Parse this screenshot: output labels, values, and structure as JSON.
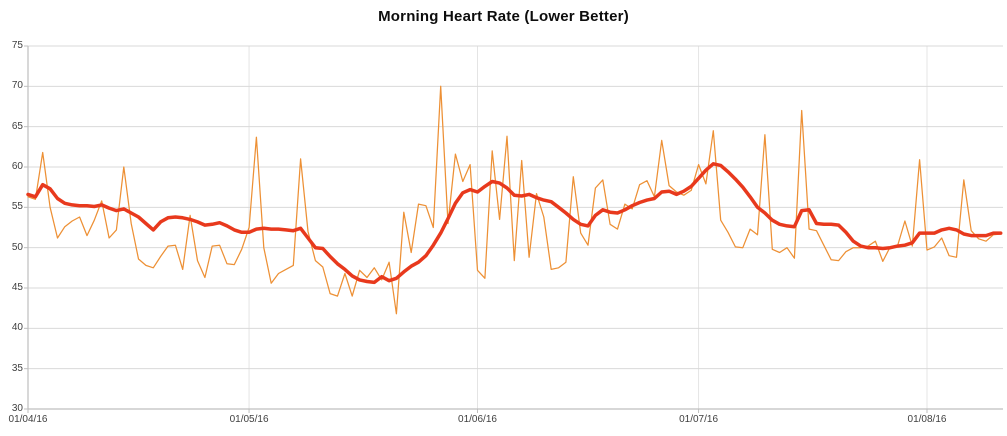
{
  "chart_data": {
    "type": "line",
    "title": "Morning Heart Rate (Lower Better)",
    "x_axis": {
      "tick_labels": [
        "01/04/16",
        "01/05/16",
        "01/06/16",
        "01/07/16",
        "01/08/16"
      ],
      "tick_day_offsets": [
        0,
        30,
        61,
        91,
        122
      ],
      "frequency": "daily",
      "total_days": 133
    },
    "y_axis": {
      "min": 30,
      "max": 75,
      "tick_step": 5,
      "tick_labels": [
        "75",
        "70",
        "65",
        "60",
        "55",
        "50",
        "45",
        "40",
        "35",
        "30"
      ]
    },
    "grid": {
      "horizontal": true,
      "vertical_month_lines": true
    },
    "colors": {
      "raw_line": "#ED9035",
      "average_line": "#E8391D",
      "gridline": "#D9D9D9",
      "vertical_gridline": "#E4E4E4",
      "axis_line": "#BFBFBF",
      "axis_text": "#3F3F3F",
      "title_text": "#0D0D0D"
    },
    "series": [
      {
        "name": "daily-values",
        "role": "raw thin orange line",
        "values": [
          56.3,
          56.0,
          61.8,
          55.0,
          51.2,
          52.6,
          53.3,
          53.8,
          51.5,
          53.4,
          55.8,
          51.2,
          52.2,
          60.0,
          53.0,
          48.6,
          47.8,
          47.5,
          48.9,
          50.2,
          50.3,
          47.3,
          54.0,
          48.4,
          46.3,
          50.2,
          50.3,
          48.0,
          47.9,
          49.8,
          52.5,
          63.7,
          50.0,
          45.6,
          46.8,
          47.3,
          47.8,
          61.0,
          52.0,
          48.4,
          47.6,
          44.3,
          44.0,
          46.8,
          44.0,
          47.2,
          46.3,
          47.5,
          46.0,
          48.2,
          41.8,
          54.4,
          49.4,
          55.4,
          55.2,
          52.5,
          70.0,
          53.0,
          61.6,
          58.2,
          60.3,
          47.2,
          46.2,
          62.0,
          53.5,
          63.8,
          48.4,
          60.8,
          48.8,
          56.7,
          53.8,
          47.3,
          47.5,
          48.2,
          58.8,
          51.8,
          50.3,
          57.4,
          58.4,
          52.9,
          52.3,
          55.4,
          54.8,
          57.8,
          58.3,
          56.3,
          63.3,
          57.7,
          56.9,
          56.5,
          57.1,
          60.3,
          57.9,
          64.5,
          53.4,
          51.9,
          50.1,
          50.0,
          52.3,
          51.6,
          64.0,
          49.8,
          49.4,
          50.0,
          48.7,
          67.0,
          52.3,
          52.1,
          50.3,
          48.5,
          48.4,
          49.5,
          50.0,
          50.0,
          50.2,
          50.8,
          48.3,
          50.1,
          50.2,
          53.3,
          50.2,
          60.9,
          49.7,
          50.1,
          51.2,
          49.0,
          48.8,
          58.4,
          52.1,
          51.1,
          50.8,
          51.6,
          51.7
        ]
      },
      {
        "name": "smoothed-average",
        "role": "thick red moving-average line",
        "values": [
          56.6,
          56.3,
          57.8,
          57.3,
          56.1,
          55.5,
          55.3,
          55.2,
          55.2,
          55.1,
          55.3,
          54.9,
          54.6,
          54.8,
          54.3,
          53.8,
          53.0,
          52.2,
          53.2,
          53.7,
          53.8,
          53.7,
          53.5,
          53.2,
          52.8,
          52.9,
          53.1,
          52.7,
          52.2,
          51.9,
          51.9,
          52.3,
          52.4,
          52.3,
          52.3,
          52.2,
          52.1,
          52.4,
          51.2,
          50.0,
          49.9,
          48.9,
          48.0,
          47.3,
          46.5,
          46.0,
          45.8,
          45.7,
          46.4,
          45.9,
          46.2,
          47.0,
          47.7,
          48.2,
          49.0,
          50.3,
          51.8,
          53.6,
          55.5,
          56.8,
          57.2,
          56.9,
          57.6,
          58.2,
          58.0,
          57.4,
          56.5,
          56.4,
          56.6,
          56.2,
          55.9,
          55.7,
          55.0,
          54.3,
          53.5,
          52.9,
          52.7,
          54.0,
          54.7,
          54.4,
          54.3,
          54.7,
          55.2,
          55.6,
          55.9,
          56.1,
          56.9,
          57.0,
          56.6,
          57.0,
          57.6,
          58.6,
          59.6,
          60.4,
          60.2,
          59.4,
          58.5,
          57.5,
          56.3,
          55.0,
          54.3,
          53.4,
          52.9,
          52.7,
          52.6,
          54.6,
          54.7,
          53.0,
          52.9,
          52.9,
          52.8,
          51.9,
          50.8,
          50.2,
          50.0,
          50.0,
          49.9,
          50.0,
          50.2,
          50.3,
          50.6,
          51.8,
          51.8,
          51.8,
          52.2,
          52.4,
          52.2,
          51.7,
          51.5,
          51.5,
          51.5,
          51.8,
          51.8
        ]
      }
    ]
  }
}
